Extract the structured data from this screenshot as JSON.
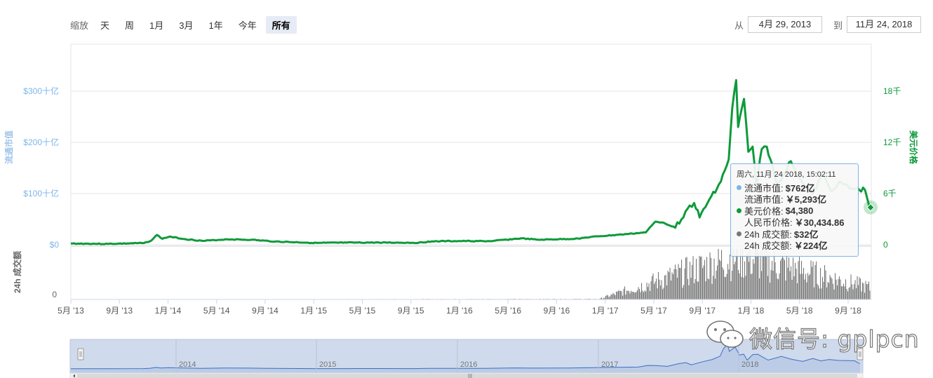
{
  "zoom": {
    "label": "缩放",
    "buttons": [
      {
        "label": "天",
        "active": false
      },
      {
        "label": "周",
        "active": false
      },
      {
        "label": "1月",
        "active": false
      },
      {
        "label": "3月",
        "active": false
      },
      {
        "label": "1年",
        "active": false
      },
      {
        "label": "今年",
        "active": false
      },
      {
        "label": "所有",
        "active": true
      }
    ]
  },
  "range": {
    "from_label": "从",
    "from_value": "4月 29, 2013",
    "to_label": "到",
    "to_value": "11月 24, 2018"
  },
  "tooltip": {
    "date": "周六, 11月 24 2018, 15:02:11",
    "rows": [
      {
        "dot": "#7cb5ec",
        "label": "流通市值:",
        "value": "$762亿"
      },
      {
        "dot": "",
        "label": "流通市值:",
        "value": "￥5,293亿"
      },
      {
        "dot": "#0e9a3a",
        "label": "美元价格:",
        "value": "$4,380"
      },
      {
        "dot": "",
        "label": "人民币价格:",
        "value": "￥30,434.86"
      },
      {
        "dot": "#777777",
        "label": "24h 成交额:",
        "value": "$32亿"
      },
      {
        "dot": "",
        "label": "24h 成交额:",
        "value": "￥224亿"
      }
    ]
  },
  "watermark": "微信号: gplpcn",
  "colors": {
    "price": "#0e9a3a",
    "market_cap": "#7cb5ec",
    "volume": "#777777",
    "navigator_fill": "#cfdaec",
    "navigator_line": "#3b6ec2"
  },
  "chart_data": {
    "type": "line",
    "yaxis_left": {
      "title": "流通市值",
      "ticks": [
        "$0",
        "$100十亿",
        "$200十亿",
        "$300十亿"
      ],
      "tick_values": [
        0,
        100,
        200,
        300
      ],
      "unit": "十亿"
    },
    "yaxis_right": {
      "title": "美元价格",
      "ticks": [
        "0",
        "6千",
        "12千",
        "18千"
      ],
      "tick_values": [
        0,
        6000,
        12000,
        18000
      ]
    },
    "yaxis_volume": {
      "title": "24h 成交额",
      "ticks": [
        "0"
      ]
    },
    "xaxis_ticks": [
      "5月 '13",
      "9月 '13",
      "1月 '14",
      "5月 '14",
      "9月 '14",
      "1月 '15",
      "5月 '15",
      "9月 '15",
      "1月 '16",
      "5月 '16",
      "9月 '16",
      "1月 '17",
      "5月 '17",
      "9月 '17",
      "1月 '18",
      "5月 '18",
      "9月 '18"
    ],
    "navigator_years": [
      "2014",
      "2015",
      "2016",
      "2017",
      "2018"
    ],
    "series": [
      {
        "name": "美元价格",
        "axis": "right",
        "color": "#0e9a3a",
        "points": [
          [
            "2013-04-29",
            140
          ],
          [
            "2013-08-01",
            100
          ],
          [
            "2013-11-01",
            200
          ],
          [
            "2013-11-20",
            500
          ],
          [
            "2013-12-04",
            1150
          ],
          [
            "2013-12-18",
            700
          ],
          [
            "2014-01-05",
            950
          ],
          [
            "2014-02-15",
            650
          ],
          [
            "2014-04-01",
            450
          ],
          [
            "2014-06-01",
            640
          ],
          [
            "2014-08-01",
            580
          ],
          [
            "2014-10-01",
            380
          ],
          [
            "2015-01-15",
            210
          ],
          [
            "2015-04-01",
            245
          ],
          [
            "2015-07-01",
            260
          ],
          [
            "2015-10-01",
            240
          ],
          [
            "2015-11-04",
            400
          ],
          [
            "2016-01-01",
            430
          ],
          [
            "2016-04-01",
            420
          ],
          [
            "2016-06-17",
            750
          ],
          [
            "2016-08-01",
            580
          ],
          [
            "2016-11-01",
            700
          ],
          [
            "2017-01-01",
            990
          ],
          [
            "2017-03-01",
            1200
          ],
          [
            "2017-05-01",
            1450
          ],
          [
            "2017-05-25",
            2700
          ],
          [
            "2017-06-15",
            2600
          ],
          [
            "2017-07-15",
            2000
          ],
          [
            "2017-08-15",
            4200
          ],
          [
            "2017-09-01",
            4900
          ],
          [
            "2017-09-15",
            3200
          ],
          [
            "2017-10-15",
            5700
          ],
          [
            "2017-11-08",
            7400
          ],
          [
            "2017-11-28",
            10000
          ],
          [
            "2017-12-07",
            16000
          ],
          [
            "2017-12-17",
            19300
          ],
          [
            "2017-12-22",
            13800
          ],
          [
            "2018-01-06",
            17100
          ],
          [
            "2018-01-17",
            10900
          ],
          [
            "2018-01-28",
            11500
          ],
          [
            "2018-02-06",
            6900
          ],
          [
            "2018-02-20",
            11200
          ],
          [
            "2018-03-05",
            11500
          ],
          [
            "2018-04-01",
            6900
          ],
          [
            "2018-05-05",
            9800
          ],
          [
            "2018-06-01",
            7500
          ],
          [
            "2018-06-29",
            5900
          ],
          [
            "2018-07-25",
            8200
          ],
          [
            "2018-08-15",
            6300
          ],
          [
            "2018-09-05",
            7400
          ],
          [
            "2018-10-01",
            6600
          ],
          [
            "2018-11-10",
            6400
          ],
          [
            "2018-11-14",
            5700
          ],
          [
            "2018-11-20",
            4600
          ],
          [
            "2018-11-24",
            4380
          ]
        ]
      },
      {
        "name": "流通市值",
        "axis": "left",
        "color": "#7cb5ec",
        "points": [
          [
            "2013-04-29",
            1.5
          ],
          [
            "2017-12-17",
            327
          ],
          [
            "2018-11-24",
            76.2
          ]
        ]
      },
      {
        "name": "24h 成交额",
        "axis": "volume",
        "color": "#777777",
        "points": [
          [
            "2013-04-29",
            0.01
          ],
          [
            "2017-01-01",
            0.2
          ],
          [
            "2017-12-22",
            18
          ],
          [
            "2018-11-20",
            5
          ],
          [
            "2018-11-24",
            3.2
          ]
        ]
      }
    ],
    "xlim": [
      "2013-04-29",
      "2018-11-24"
    ],
    "grid": true,
    "legend": "none"
  }
}
